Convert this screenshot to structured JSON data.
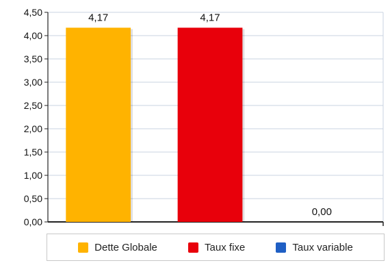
{
  "chart_data": {
    "type": "bar",
    "categories": [
      "Dette Globale",
      "Taux fixe",
      "Taux variable"
    ],
    "values": [
      4.17,
      4.17,
      0.0
    ],
    "data_labels": [
      "4,17",
      "4,17",
      "0,00"
    ],
    "colors": [
      "#FFB300",
      "#E8000B",
      "#1F5FC4"
    ],
    "ylim": [
      0,
      4.5
    ],
    "yticks": [
      0,
      0.5,
      1,
      1.5,
      2,
      2.5,
      3,
      3.5,
      4,
      4.5
    ],
    "ytick_labels": [
      "0,00",
      "0,50",
      "1,00",
      "1,50",
      "2,00",
      "2,50",
      "3,00",
      "3,50",
      "4,00",
      "4,50"
    ],
    "grid": true,
    "legend_position": "bottom",
    "legend": [
      "Dette Globale",
      "Taux fixe",
      "Taux variable"
    ]
  }
}
